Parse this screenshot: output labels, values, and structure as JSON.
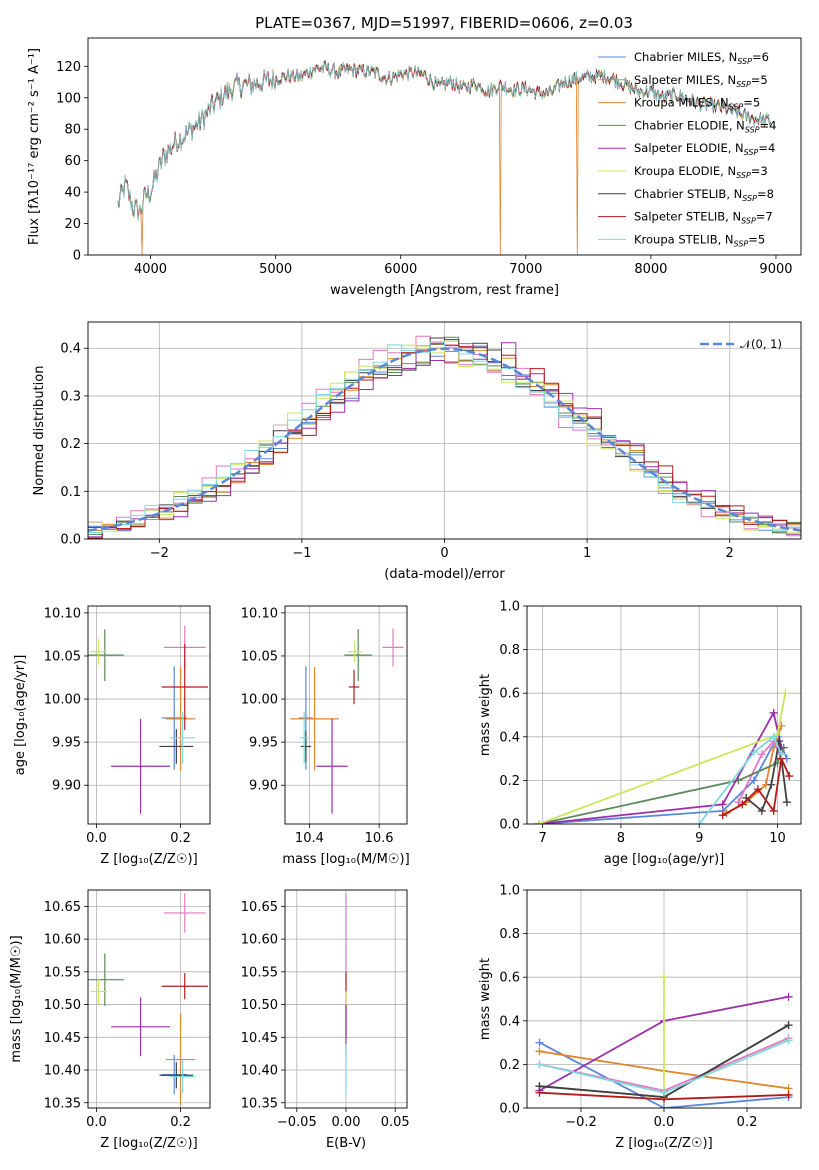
{
  "figure": {
    "title": "PLATE=0367, MJD=51997, FIBERID=0606, z=0.03"
  },
  "chart_data": [
    {
      "type": "line",
      "id": "spectrum",
      "title": "PLATE=0367, MJD=51997, FIBERID=0606, z=0.03",
      "xlabel": "wavelength [Angstrom, rest frame]",
      "ylabel": "Flux [fλ10⁻¹⁷ erg cm⁻² s⁻¹ A⁻¹]",
      "xlim": [
        3500,
        9200
      ],
      "ylim": [
        0,
        138
      ],
      "xticks": [
        4000,
        5000,
        6000,
        7000,
        8000,
        9000
      ],
      "yticks": [
        0,
        20,
        40,
        60,
        80,
        100,
        120
      ],
      "grid": false,
      "legend": "top-right",
      "continuum": {
        "x": [
          3740,
          3800,
          3860,
          3920,
          3960,
          4000,
          4100,
          4200,
          4300,
          4400,
          4500,
          4600,
          4700,
          4800,
          4900,
          5000,
          5100,
          5200,
          5300,
          5400,
          5500,
          5600,
          5700,
          5800,
          5900,
          6000,
          6100,
          6200,
          6300,
          6400,
          6500,
          6600,
          6700,
          6800,
          6900,
          7000,
          7100,
          7200,
          7300,
          7400,
          7500,
          7600,
          7700,
          7800,
          7900,
          8000,
          8100,
          8200,
          8300,
          8400,
          8500,
          8600,
          8700,
          8800,
          8900,
          8960
        ],
        "y": [
          32,
          45,
          30,
          28,
          38,
          40,
          62,
          72,
          78,
          85,
          95,
          103,
          108,
          108,
          110,
          112,
          114,
          113,
          118,
          119,
          116,
          118,
          117,
          116,
          112,
          115,
          116,
          114,
          107,
          110,
          106,
          109,
          104,
          108,
          105,
          106,
          103,
          103,
          110,
          112,
          113,
          114,
          112,
          108,
          104,
          104,
          100,
          102,
          99,
          96,
          95,
          93,
          90,
          87,
          86,
          85
        ]
      },
      "dips": [
        {
          "x": 3933,
          "y": 0
        },
        {
          "x": 6794,
          "y": 0
        },
        {
          "x": 7410,
          "y": 0
        }
      ],
      "series": [
        {
          "name": "Chabrier MILES, N_SSP=6",
          "label_main": "Chabrier MILES, N",
          "label_tail": "=6",
          "color": "#5b87d8"
        },
        {
          "name": "Salpeter MILES, N_SSP=5",
          "label_main": "Salpeter MILES, N",
          "label_tail": "=5",
          "color": "#e0862f"
        },
        {
          "name": "Kroupa MILES, N_SSP=5",
          "label_main": "Kroupa MILES, N",
          "label_tail": "=5",
          "color": "#e0862f"
        },
        {
          "name": "Chabrier ELODIE, N_SSP=4",
          "label_main": "Chabrier ELODIE, N",
          "label_tail": "=4",
          "color": "#5a8a5a"
        },
        {
          "name": "Salpeter ELODIE, N_SSP=4",
          "label_main": "Salpeter ELODIE, N",
          "label_tail": "=4",
          "color": "#9b30a8"
        },
        {
          "name": "Kroupa ELODIE, N_SSP=3",
          "label_main": "Kroupa ELODIE, N",
          "label_tail": "=3",
          "color": "#c8e85a"
        },
        {
          "name": "Chabrier STELIB, N_SSP=8",
          "label_main": "Chabrier STELIB, N",
          "label_tail": "=8",
          "color": "#404040"
        },
        {
          "name": "Salpeter STELIB, N_SSP=7",
          "label_main": "Salpeter STELIB, N",
          "label_tail": "=7",
          "color": "#b31b1b"
        },
        {
          "name": "Kroupa STELIB, N_SSP=5",
          "label_main": "Kroupa STELIB, N",
          "label_tail": "=5",
          "color": "#7fd8e0"
        }
      ],
      "legend_subscript": "SSP"
    },
    {
      "type": "line",
      "id": "residuals",
      "xlabel": "(data-model)/error",
      "ylabel": "Normed distribution",
      "xlim": [
        -2.5,
        2.5
      ],
      "ylim": [
        0,
        0.455
      ],
      "xticks": [
        -2,
        -1,
        0,
        1,
        2
      ],
      "yticks": [
        0.0,
        0.1,
        0.2,
        0.3,
        0.4
      ],
      "grid": true,
      "legend": "top-right",
      "reference": {
        "name": "N(0,1)",
        "label": "𝒩(0, 1)",
        "color": "#5b87d8",
        "mu": 0,
        "sigma": 1
      },
      "bin_width": 0.1,
      "series": [
        {
          "color": "#5b87d8",
          "offset": 0.0
        },
        {
          "color": "#e377c2",
          "offset": -0.01
        },
        {
          "color": "#e0862f",
          "offset": 0.005
        },
        {
          "color": "#5a8a5a",
          "offset": 0.0
        },
        {
          "color": "#9b30a8",
          "offset": 0.01
        },
        {
          "color": "#c8e85a",
          "offset": -0.005
        },
        {
          "color": "#404040",
          "offset": 0.0
        },
        {
          "color": "#b31b1b",
          "offset": 0.008
        },
        {
          "color": "#7fd8e0",
          "offset": -0.008
        }
      ]
    },
    {
      "type": "scatter",
      "id": "age_vs_Z",
      "xlabel": "Z [log₁₀(Z/Z☉)]",
      "ylabel": "age  [log₁₀(age/yr)]",
      "xlim": [
        -0.02,
        0.27
      ],
      "ylim": [
        9.855,
        10.108
      ],
      "xticks": [
        0.0,
        0.2
      ],
      "yticks": [
        9.9,
        9.95,
        10.0,
        10.05,
        10.1
      ],
      "grid": true,
      "points": [
        {
          "color": "#5b87d8",
          "x": 0.185,
          "y": 9.978,
          "xerr": 0.03,
          "yerr": 0.06
        },
        {
          "color": "#e377c2",
          "x": 0.21,
          "y": 10.06,
          "xerr": 0.05,
          "yerr": 0.025
        },
        {
          "color": "#e0862f",
          "x": 0.2,
          "y": 9.977,
          "xerr": 0.035,
          "yerr": 0.06
        },
        {
          "color": "#5a8a5a",
          "x": 0.02,
          "y": 10.051,
          "xerr": 0.045,
          "yerr": 0.03
        },
        {
          "color": "#9b30a8",
          "x": 0.105,
          "y": 9.922,
          "xerr": 0.07,
          "yerr": 0.055
        },
        {
          "color": "#c8e85a",
          "x": 0.005,
          "y": 10.055,
          "xerr": 0.02,
          "yerr": 0.015
        },
        {
          "color": "#404040",
          "x": 0.19,
          "y": 9.945,
          "xerr": 0.04,
          "yerr": 0.02
        },
        {
          "color": "#b31b1b",
          "x": 0.21,
          "y": 10.014,
          "xerr": 0.055,
          "yerr": 0.05
        },
        {
          "color": "#7fd8e0",
          "x": 0.205,
          "y": 9.955,
          "xerr": 0.03,
          "yerr": 0.03
        }
      ]
    },
    {
      "type": "scatter",
      "id": "age_vs_mass",
      "xlabel": "mass [log₁₀(M/M☉)]",
      "ylabel": "",
      "xlim": [
        10.33,
        10.68
      ],
      "ylim": [
        9.855,
        10.108
      ],
      "xticks": [
        10.4,
        10.6
      ],
      "yticks": [
        9.9,
        9.95,
        10.0,
        10.05,
        10.1
      ],
      "grid": true,
      "points": [
        {
          "color": "#5b87d8",
          "x": 10.39,
          "y": 9.978,
          "xerr": 0.02,
          "yerr": 0.06
        },
        {
          "color": "#e377c2",
          "x": 10.64,
          "y": 10.06,
          "xerr": 0.03,
          "yerr": 0.022
        },
        {
          "color": "#e0862f",
          "x": 10.415,
          "y": 9.977,
          "xerr": 0.07,
          "yerr": 0.06
        },
        {
          "color": "#5a8a5a",
          "x": 10.54,
          "y": 10.051,
          "xerr": 0.04,
          "yerr": 0.03
        },
        {
          "color": "#9b30a8",
          "x": 10.465,
          "y": 9.922,
          "xerr": 0.045,
          "yerr": 0.055
        },
        {
          "color": "#c8e85a",
          "x": 10.53,
          "y": 10.055,
          "xerr": 0.02,
          "yerr": 0.012
        },
        {
          "color": "#404040",
          "x": 10.39,
          "y": 9.945,
          "xerr": 0.015,
          "yerr": 0.018
        },
        {
          "color": "#b31b1b",
          "x": 10.528,
          "y": 10.014,
          "xerr": 0.015,
          "yerr": 0.02
        },
        {
          "color": "#7fd8e0",
          "x": 10.385,
          "y": 9.955,
          "xerr": 0.012,
          "yerr": 0.03
        }
      ]
    },
    {
      "type": "line",
      "id": "mass_weight_vs_age",
      "xlabel": "age  [log₁₀(age/yr)]",
      "ylabel": "mass weight",
      "xlim": [
        6.8,
        10.3
      ],
      "ylim": [
        0,
        1.0
      ],
      "xticks": [
        7,
        8,
        9,
        10
      ],
      "yticks": [
        0.0,
        0.2,
        0.4,
        0.6,
        0.8,
        1.0
      ],
      "grid": true,
      "series": [
        {
          "color": "#5b87d8",
          "x": [
            6.95,
            9.3,
            9.7,
            10.0,
            10.12
          ],
          "y": [
            0.0,
            0.06,
            0.2,
            0.4,
            0.3
          ]
        },
        {
          "color": "#e0862f",
          "x": [
            9.35,
            9.6,
            9.85,
            9.95,
            10.05
          ],
          "y": [
            0.05,
            0.1,
            0.18,
            0.35,
            0.45
          ]
        },
        {
          "color": "#e377c2",
          "x": [
            9.5,
            9.8,
            9.95,
            10.05
          ],
          "y": [
            0.1,
            0.32,
            0.38,
            0.3
          ]
        },
        {
          "color": "#5a8a5a",
          "x": [
            6.95,
            9.5,
            10.0,
            10.08
          ],
          "y": [
            0.0,
            0.2,
            0.28,
            0.35
          ]
        },
        {
          "color": "#9b30a8",
          "x": [
            6.95,
            9.3,
            9.95,
            10.05
          ],
          "y": [
            0.0,
            0.09,
            0.51,
            0.35
          ]
        },
        {
          "color": "#c8e85a",
          "x": [
            6.95,
            10.0,
            10.1
          ],
          "y": [
            0.0,
            0.41,
            0.6
          ]
        },
        {
          "color": "#404040",
          "x": [
            9.6,
            9.8,
            9.92,
            10.02,
            10.12
          ],
          "y": [
            0.12,
            0.06,
            0.18,
            0.38,
            0.1
          ]
        },
        {
          "color": "#b31b1b",
          "x": [
            9.3,
            9.55,
            9.75,
            9.95,
            10.05,
            10.15
          ],
          "y": [
            0.04,
            0.09,
            0.16,
            0.06,
            0.3,
            0.22
          ]
        },
        {
          "color": "#7fd8e0",
          "x": [
            9.0,
            9.7,
            9.95,
            10.05
          ],
          "y": [
            0.0,
            0.33,
            0.4,
            0.32
          ]
        }
      ]
    },
    {
      "type": "scatter",
      "id": "mass_vs_Z",
      "xlabel": "Z [log₁₀(Z/Z☉)]",
      "ylabel": "mass [log₁₀(M/M☉)]",
      "xlim": [
        -0.02,
        0.27
      ],
      "ylim": [
        10.342,
        10.675
      ],
      "xticks": [
        0.0,
        0.2
      ],
      "yticks": [
        10.35,
        10.4,
        10.45,
        10.5,
        10.55,
        10.6,
        10.65
      ],
      "grid": true,
      "points": [
        {
          "color": "#5b87d8",
          "x": 0.185,
          "y": 10.393,
          "xerr": 0.03,
          "yerr": 0.03
        },
        {
          "color": "#e377c2",
          "x": 0.21,
          "y": 10.64,
          "xerr": 0.05,
          "yerr": 0.03
        },
        {
          "color": "#e0862f",
          "x": 0.2,
          "y": 10.416,
          "xerr": 0.035,
          "yerr": 0.07
        },
        {
          "color": "#5a8a5a",
          "x": 0.02,
          "y": 10.538,
          "xerr": 0.045,
          "yerr": 0.04
        },
        {
          "color": "#9b30a8",
          "x": 0.105,
          "y": 10.466,
          "xerr": 0.07,
          "yerr": 0.045
        },
        {
          "color": "#c8e85a",
          "x": 0.005,
          "y": 10.52,
          "xerr": 0.02,
          "yerr": 0.02
        },
        {
          "color": "#404040",
          "x": 0.19,
          "y": 10.392,
          "xerr": 0.04,
          "yerr": 0.02
        },
        {
          "color": "#b31b1b",
          "x": 0.21,
          "y": 10.528,
          "xerr": 0.055,
          "yerr": 0.02
        },
        {
          "color": "#7fd8e0",
          "x": 0.205,
          "y": 10.39,
          "xerr": 0.03,
          "yerr": 0.025
        }
      ]
    },
    {
      "type": "scatter",
      "id": "mass_vs_ebv",
      "xlabel": "E(B-V)",
      "ylabel": "",
      "xlim": [
        -0.062,
        0.062
      ],
      "ylim": [
        10.342,
        10.675
      ],
      "xticks": [
        -0.05,
        0.0,
        0.05
      ],
      "yticks": [
        10.35,
        10.4,
        10.45,
        10.5,
        10.55,
        10.6,
        10.65
      ],
      "grid": true,
      "points": [
        {
          "color": "#e377c2",
          "x": 0.0,
          "y": 10.6,
          "xerr": 0.0,
          "yerr": 0.07
        },
        {
          "color": "#b31b1b",
          "x": 0.0,
          "y": 10.5,
          "xerr": 0.0,
          "yerr": 0.05
        },
        {
          "color": "#9b30a8",
          "x": 0.0,
          "y": 10.46,
          "xerr": 0.0,
          "yerr": 0.04
        },
        {
          "color": "#c8e85a",
          "x": 0.0,
          "y": 10.51,
          "xerr": 0.0,
          "yerr": 0.01
        },
        {
          "color": "#7fd8e0",
          "x": 0.0,
          "y": 10.4,
          "xerr": 0.0,
          "yerr": 0.04
        }
      ]
    },
    {
      "type": "line",
      "id": "mass_weight_vs_Z",
      "xlabel": "Z [log₁₀(Z/Z☉)]",
      "ylabel": "mass weight",
      "xlim": [
        -0.33,
        0.33
      ],
      "ylim": [
        0,
        1.0
      ],
      "xticks": [
        -0.2,
        0.0,
        0.2
      ],
      "yticks": [
        0.0,
        0.2,
        0.4,
        0.6,
        0.8,
        1.0
      ],
      "grid": true,
      "series": [
        {
          "color": "#5b87d8",
          "x": [
            -0.3,
            0.0,
            0.3
          ],
          "y": [
            0.3,
            0.0,
            0.05
          ]
        },
        {
          "color": "#e0862f",
          "x": [
            -0.3,
            0.0,
            0.3
          ],
          "y": [
            0.26,
            0.17,
            0.09
          ]
        },
        {
          "color": "#e377c2",
          "x": [
            -0.3,
            0.0,
            0.3
          ],
          "y": [
            0.2,
            0.08,
            0.32
          ]
        },
        {
          "color": "#5a8a5a",
          "x": [
            -0.3,
            0.0,
            0.3
          ],
          "y": [
            0.1,
            0.05,
            0.38
          ]
        },
        {
          "color": "#9b30a8",
          "x": [
            -0.3,
            0.0,
            0.3
          ],
          "y": [
            0.08,
            0.4,
            0.51
          ]
        },
        {
          "color": "#c8e85a",
          "x": [
            0.0,
            0.0
          ],
          "y": [
            0.05,
            0.6
          ]
        },
        {
          "color": "#404040",
          "x": [
            -0.3,
            0.0,
            0.3
          ],
          "y": [
            0.1,
            0.05,
            0.38
          ]
        },
        {
          "color": "#b31b1b",
          "x": [
            -0.3,
            0.0,
            0.3
          ],
          "y": [
            0.07,
            0.04,
            0.06
          ]
        },
        {
          "color": "#7fd8e0",
          "x": [
            -0.3,
            0.0,
            0.3
          ],
          "y": [
            0.2,
            0.07,
            0.31
          ]
        }
      ]
    }
  ]
}
